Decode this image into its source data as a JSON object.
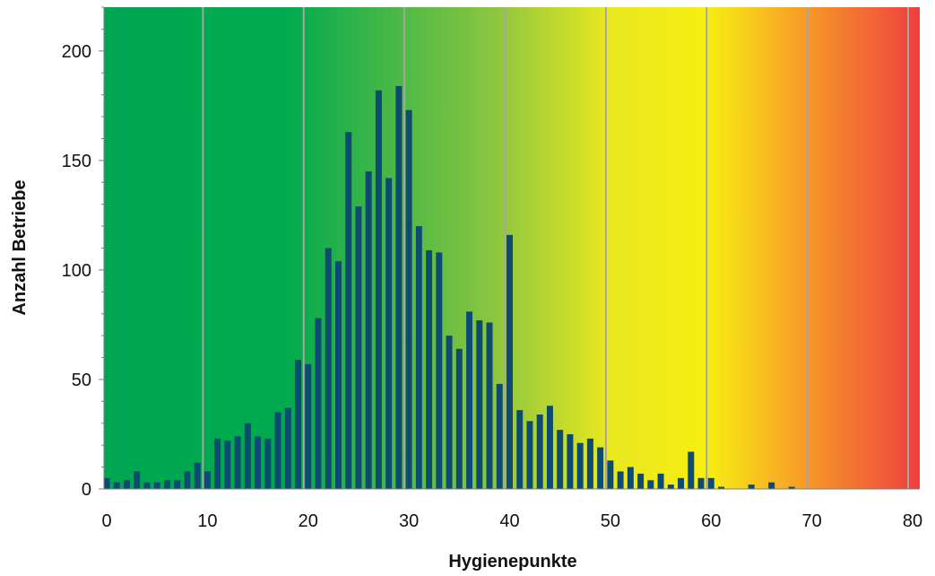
{
  "chart_data": {
    "type": "bar",
    "title": "",
    "xlabel": "Hygienepunkte",
    "ylabel": "Anzahl Betriebe",
    "xlim": [
      0,
      80
    ],
    "ylim": [
      0,
      220
    ],
    "x_ticks": [
      "0",
      "10",
      "20",
      "30",
      "40",
      "50",
      "60",
      "70",
      "80"
    ],
    "y_ticks": [
      "0",
      "50",
      "100",
      "150",
      "200"
    ],
    "grid": "vertical lines at 10-point intervals",
    "background": "horizontal gradient green to yellow to red",
    "bar_color": "#0d4b73",
    "gradient_colors": [
      "#00a651",
      "#8dc63f",
      "#f2ef17",
      "#f7941d",
      "#ed3e3e"
    ],
    "grid_color": "#a6a6a6",
    "x": [
      0,
      1,
      2,
      3,
      4,
      5,
      6,
      7,
      8,
      9,
      10,
      11,
      12,
      13,
      14,
      15,
      16,
      17,
      18,
      19,
      20,
      21,
      22,
      23,
      24,
      25,
      26,
      27,
      28,
      29,
      30,
      31,
      32,
      33,
      34,
      35,
      36,
      37,
      38,
      39,
      40,
      41,
      42,
      43,
      44,
      45,
      46,
      47,
      48,
      49,
      50,
      51,
      52,
      53,
      54,
      55,
      56,
      57,
      58,
      59,
      60,
      61,
      62,
      63,
      64,
      65,
      66,
      67,
      68,
      69,
      70,
      71,
      72,
      73,
      74,
      75,
      76,
      77,
      78,
      79,
      80
    ],
    "values": [
      5,
      3,
      4,
      8,
      3,
      3,
      4,
      4,
      8,
      12,
      8,
      23,
      22,
      24,
      30,
      24,
      23,
      35,
      37,
      59,
      57,
      78,
      110,
      104,
      163,
      129,
      145,
      182,
      142,
      184,
      173,
      120,
      109,
      108,
      70,
      64,
      81,
      77,
      76,
      48,
      116,
      36,
      31,
      34,
      38,
      27,
      25,
      21,
      23,
      19,
      13,
      8,
      10,
      7,
      4,
      7,
      2,
      5,
      17,
      5,
      5,
      1,
      0,
      0,
      2,
      0,
      3,
      0,
      1,
      0,
      0,
      0,
      0,
      0,
      0,
      0,
      0,
      0,
      0,
      0,
      0
    ]
  }
}
